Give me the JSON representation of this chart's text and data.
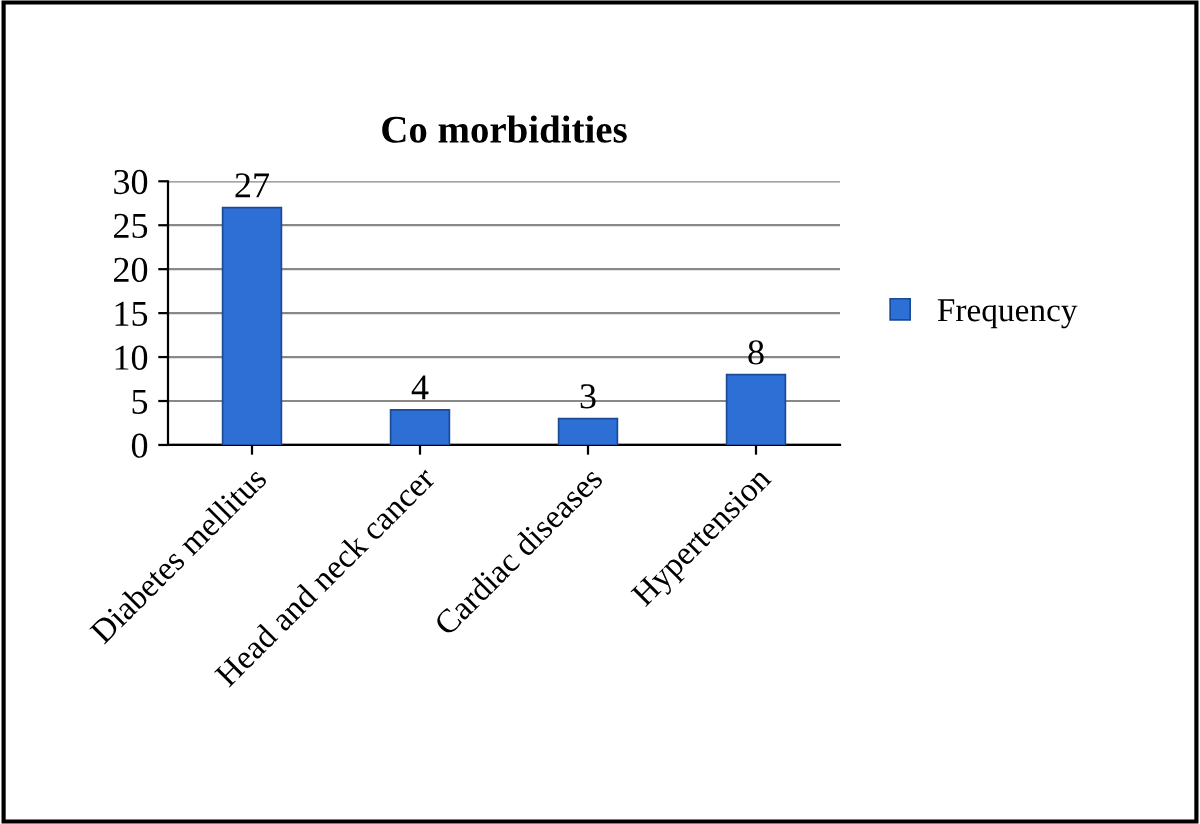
{
  "chart_data": {
    "type": "bar",
    "title": "Co morbidities",
    "categories": [
      "Diabetes mellitus",
      "Head and neck cancer",
      "Cardiac diseases",
      "Hypertension"
    ],
    "series": [
      {
        "name": "Frequency",
        "color": "#2e6fd6",
        "values": [
          27,
          4,
          3,
          8
        ]
      }
    ],
    "ylim": [
      0,
      30
    ],
    "yticks": [
      0,
      5,
      10,
      15,
      20,
      25,
      30
    ],
    "grid": "y",
    "legend": "right",
    "data_labels": true
  }
}
